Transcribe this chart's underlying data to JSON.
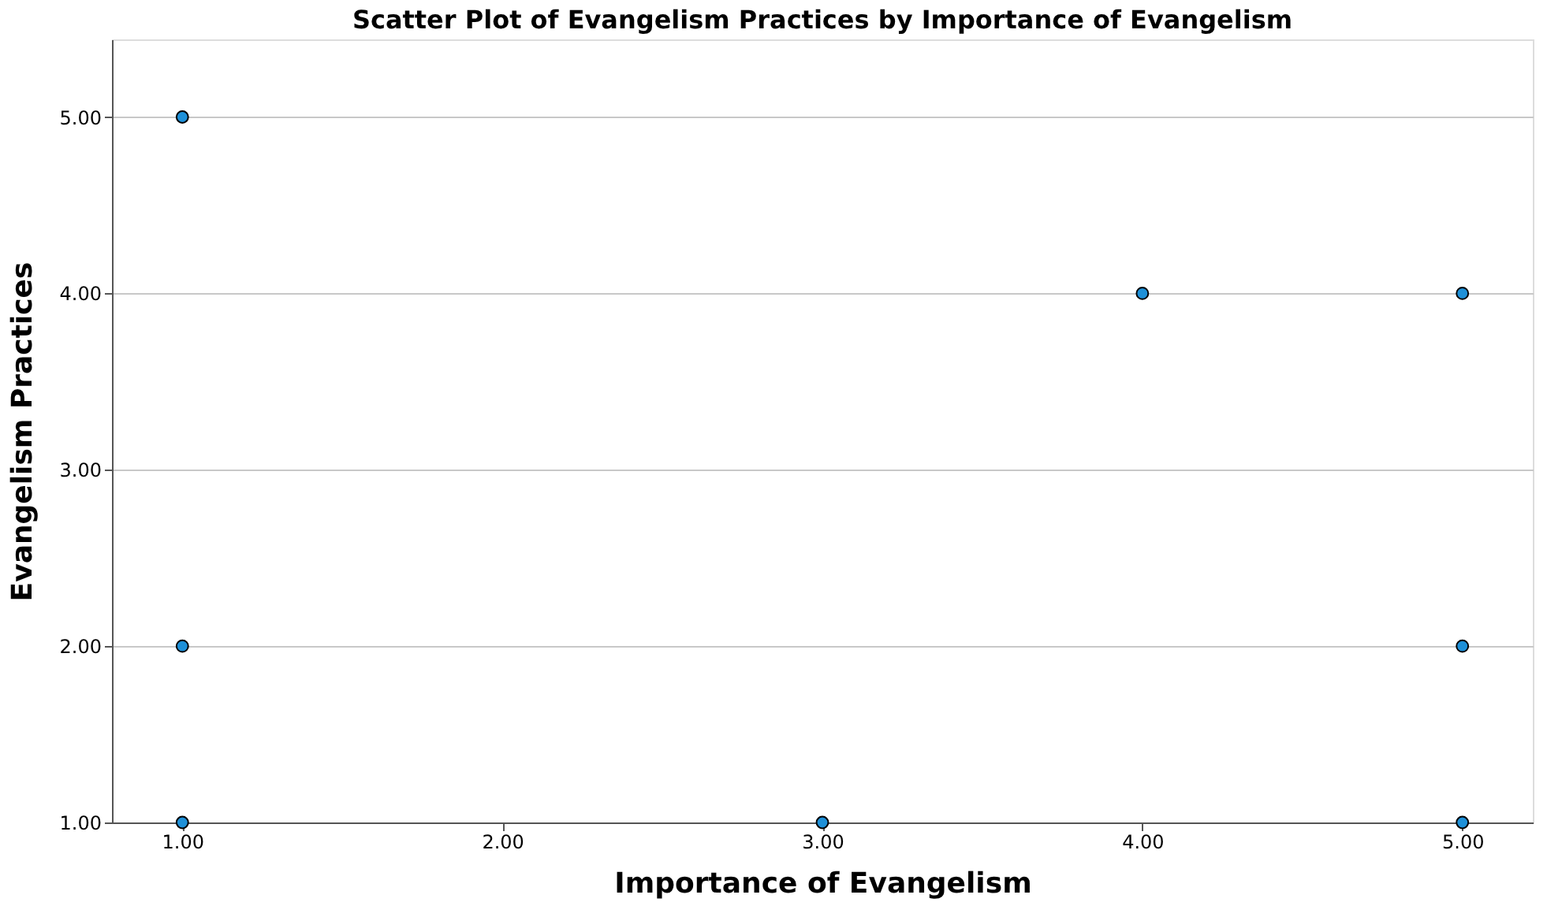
{
  "chart_data": {
    "type": "scatter",
    "title": "Scatter Plot of Evangelism Practices by Importance of Evangelism",
    "xlabel": "Importance of Evangelism",
    "ylabel": "Evangelism Practices",
    "x": [
      1,
      1,
      1,
      3,
      4,
      5,
      5,
      5
    ],
    "series": [
      {
        "color": "#1e90d8",
        "values": [
          5,
          2,
          1,
          1,
          4,
          4,
          2,
          1
        ]
      }
    ],
    "xlim": [
      0.78,
      5.22
    ],
    "ylim": [
      1,
      5.44
    ],
    "xticks": [
      {
        "value": 1,
        "label": "1.00"
      },
      {
        "value": 2,
        "label": "2.00"
      },
      {
        "value": 3,
        "label": "3.00"
      },
      {
        "value": 4,
        "label": "4.00"
      },
      {
        "value": 5,
        "label": "5.00"
      }
    ],
    "yticks": [
      {
        "value": 1,
        "label": "1.00"
      },
      {
        "value": 2,
        "label": "2.00"
      },
      {
        "value": 3,
        "label": "3.00"
      },
      {
        "value": 4,
        "label": "4.00"
      },
      {
        "value": 5,
        "label": "5.00"
      }
    ],
    "grid": "y",
    "marker": "circle"
  }
}
